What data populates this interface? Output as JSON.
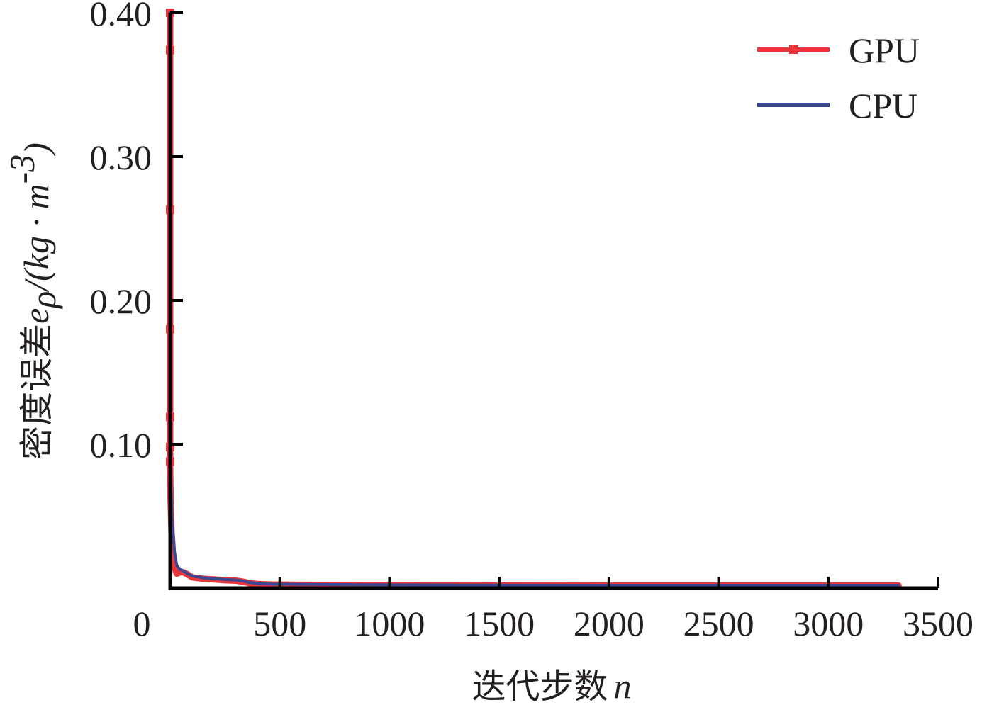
{
  "chart_data": {
    "type": "line",
    "xlabel": {
      "text": "迭代步数",
      "variable": "n"
    },
    "ylabel": {
      "text": "密度误差",
      "variable": "e",
      "subscript": "ρ",
      "unit_prefix": "/(kg · m",
      "unit_sup": "-3",
      "unit_suffix": ")"
    },
    "xlim": [
      0,
      3500
    ],
    "ylim": [
      0,
      0.4
    ],
    "x_ticks": [
      500,
      1000,
      1500,
      2000,
      2500,
      3000,
      3500
    ],
    "x_tick_labels": [
      "500",
      "1000",
      "1500",
      "2000",
      "2500",
      "3000",
      "3500"
    ],
    "x_origin_label": "0",
    "y_ticks": [
      0.1,
      0.2,
      0.3,
      0.4
    ],
    "y_tick_labels": [
      "0.10",
      "0.20",
      "0.30",
      "0.40"
    ],
    "grid": false,
    "legend_position": "top-right",
    "series": [
      {
        "name": "GPU",
        "color": "#e8363a",
        "marker": "square",
        "x": [
          0,
          0,
          0,
          0,
          0,
          0,
          0,
          0,
          2,
          6,
          12,
          20,
          30,
          45,
          60,
          80,
          100,
          125,
          150,
          200,
          250,
          300,
          330,
          360,
          400,
          450,
          500,
          600,
          800,
          1000,
          1200,
          1500,
          2000,
          2500,
          3000,
          3320
        ],
        "y": [
          0.4,
          0.374,
          0.263,
          0.18,
          0.119,
          0.098,
          0.088,
          0.082,
          0.062,
          0.04,
          0.025,
          0.014,
          0.01,
          0.011,
          0.011,
          0.0095,
          0.0075,
          0.007,
          0.0065,
          0.006,
          0.0055,
          0.0052,
          0.0045,
          0.0035,
          0.0028,
          0.0025,
          0.0024,
          0.0023,
          0.0022,
          0.0021,
          0.002,
          0.0019,
          0.0018,
          0.0018,
          0.0018,
          0.0018
        ],
        "marker_x": [
          0,
          0,
          0,
          0,
          0,
          0,
          0
        ],
        "marker_y": [
          0.4,
          0.374,
          0.263,
          0.18,
          0.119,
          0.098,
          0.088
        ]
      },
      {
        "name": "CPU",
        "color": "#3a4793",
        "marker": "none",
        "x": [
          0,
          0,
          0,
          0,
          2,
          6,
          12,
          20,
          30,
          45,
          60,
          80,
          100,
          125,
          150,
          200,
          250,
          300,
          330,
          360,
          400,
          450,
          500,
          600,
          800,
          1000,
          1200,
          1500,
          2000,
          2500,
          3000,
          3320
        ],
        "y": [
          0.4,
          0.2,
          0.1,
          0.088,
          0.075,
          0.06,
          0.04,
          0.025,
          0.016,
          0.013,
          0.012,
          0.01,
          0.0085,
          0.0078,
          0.0072,
          0.0066,
          0.006,
          0.0056,
          0.005,
          0.004,
          0.0032,
          0.0028,
          0.0027,
          0.0026,
          0.0024,
          0.0023,
          0.0022,
          0.0021,
          0.002,
          0.002,
          0.002,
          0.002
        ]
      }
    ]
  }
}
